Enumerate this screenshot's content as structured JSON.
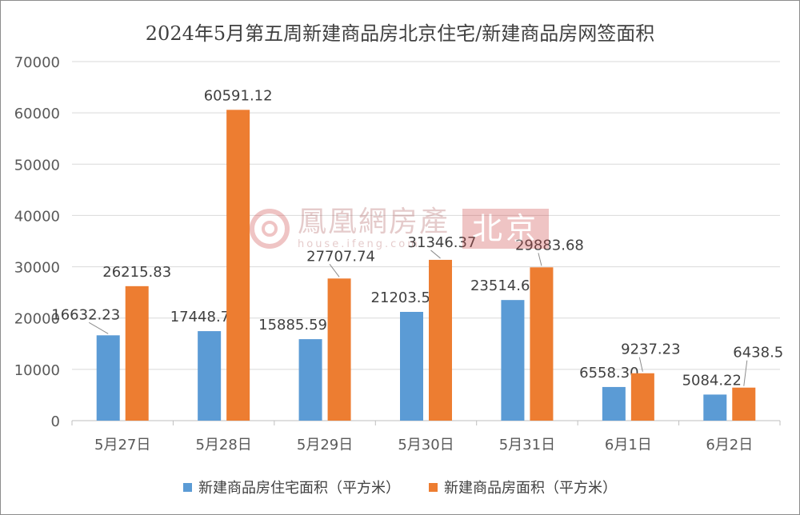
{
  "title": "2024年5月第五周新建商品房北京住宅/新建商品房网签面积",
  "watermark": {
    "name": "鳳凰網房產",
    "url": "house.ifeng.com",
    "city": "北京"
  },
  "chart_data": {
    "type": "bar",
    "title": "2024年5月第五周新建商品房北京住宅/新建商品房网签面积",
    "categories": [
      "5月27日",
      "5月28日",
      "5月29日",
      "5月30日",
      "5月31日",
      "6月1日",
      "6月2日"
    ],
    "series": [
      {
        "name": "新建商品房住宅面积（平方米）",
        "color": "#5b9bd5",
        "values": [
          16632.23,
          17448.75,
          15885.59,
          21203.55,
          23514.61,
          6558.3,
          5084.22
        ],
        "labels": [
          "16632.23",
          "17448.75",
          "15885.59",
          "21203.55",
          "23514.61",
          "6558.30",
          "5084.22"
        ]
      },
      {
        "name": "新建商品房面积（平方米）",
        "color": "#ed7d31",
        "values": [
          26215.83,
          60591.12,
          27707.74,
          31346.37,
          29883.68,
          9237.23,
          6438.5
        ],
        "labels": [
          "26215.83",
          "60591.12",
          "27707.74",
          "31346.37",
          "29883.68",
          "9237.23",
          "6438.5"
        ]
      }
    ],
    "ylim": [
      0,
      70000
    ],
    "yticks": [
      "0",
      "10000",
      "20000",
      "30000",
      "40000",
      "50000",
      "60000",
      "70000"
    ],
    "grid": true,
    "legend_position": "bottom"
  }
}
